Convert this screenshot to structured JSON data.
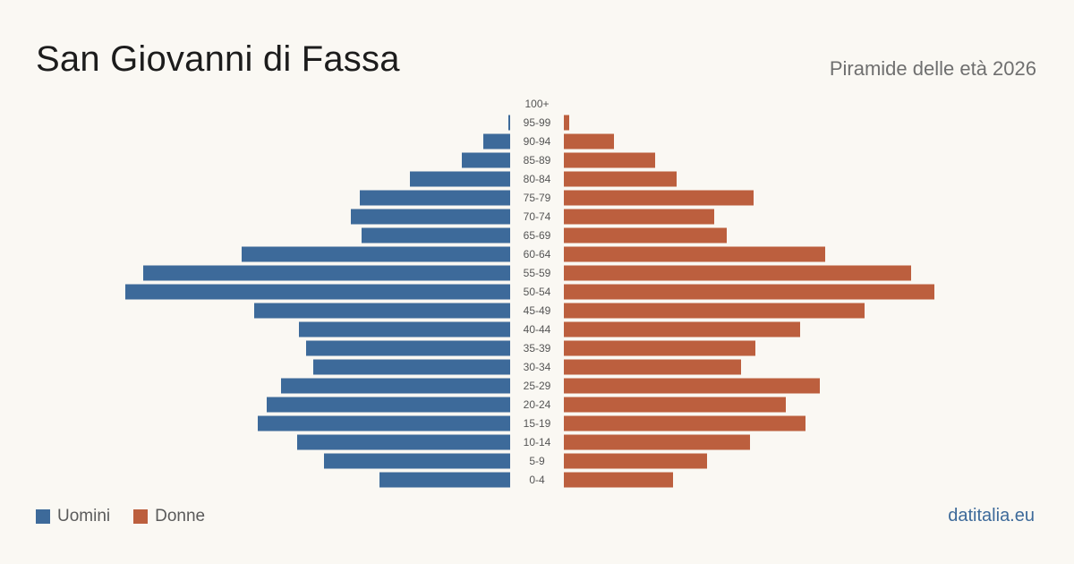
{
  "title": "San Giovanni di Fassa",
  "subtitle": "Piramide delle età 2026",
  "brand": "datitalia.eu",
  "colors": {
    "men": "#3d6a9a",
    "women": "#bc5f3e"
  },
  "legend": {
    "men_label": "Uomini",
    "women_label": "Donne"
  },
  "chart_data": {
    "type": "bar",
    "orientation": "horizontal-pyramid",
    "categories": [
      "100+",
      "95-99",
      "90-94",
      "85-89",
      "80-84",
      "75-79",
      "70-74",
      "65-69",
      "60-64",
      "55-59",
      "50-54",
      "45-49",
      "40-44",
      "35-39",
      "30-34",
      "25-29",
      "20-24",
      "15-19",
      "10-14",
      "5-9",
      "0-4"
    ],
    "series": [
      {
        "name": "Uomini",
        "values": [
          0,
          1,
          15,
          27,
          56,
          84,
          89,
          83,
          150,
          205,
          215,
          143,
          118,
          114,
          110,
          128,
          136,
          141,
          119,
          104,
          73
        ]
      },
      {
        "name": "Donne",
        "values": [
          0,
          3,
          28,
          51,
          63,
          106,
          84,
          91,
          146,
          194,
          207,
          168,
          132,
          107,
          99,
          143,
          124,
          135,
          104,
          80,
          61
        ]
      }
    ],
    "legend_position": "bottom-left"
  }
}
